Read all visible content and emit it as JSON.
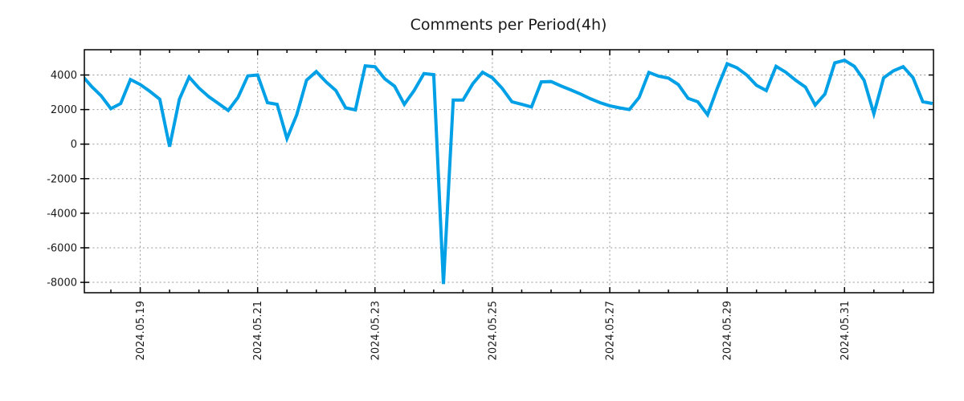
{
  "page": {
    "background": "#ffffff",
    "axis_color": "#000000",
    "grid_color": "#999999",
    "text_color": "#1a1a1a"
  },
  "chart_data": {
    "type": "line",
    "title": "Comments per Period(4h)",
    "period": "4h",
    "legend": "none",
    "grid": "dotted",
    "line_color": "#00a0e6",
    "line_width": 4,
    "x_tick_labels": [
      "2024.05.19",
      "2024.05.21",
      "2024.05.23",
      "2024.05.25",
      "2024.05.27",
      "2024.05.29",
      "2024.05.31"
    ],
    "y_ticks": [
      4000,
      2000,
      0,
      -2000,
      -4000,
      -6000,
      -8000
    ],
    "x_range": [
      "2024.05.18 00:00",
      "2024.06.01 12:40"
    ],
    "y_range": [
      -8600,
      5460
    ],
    "hours": [
      0,
      4,
      8,
      12,
      16,
      20
    ],
    "days": [
      {
        "date": "2024.05.18",
        "values": [
          4000,
          3350,
          2800,
          2050,
          2350,
          3740
        ]
      },
      {
        "date": "2024.05.19",
        "values": [
          3450,
          3050,
          2600,
          -150,
          2600,
          3880
        ]
      },
      {
        "date": "2024.05.20",
        "values": [
          3250,
          2750,
          2350,
          1950,
          2700,
          3950
        ]
      },
      {
        "date": "2024.05.21",
        "values": [
          4000,
          2400,
          2300,
          320,
          1700,
          3700
        ]
      },
      {
        "date": "2024.05.22",
        "values": [
          4200,
          3600,
          3100,
          2100,
          1980,
          4530
        ]
      },
      {
        "date": "2024.05.23",
        "values": [
          4480,
          3780,
          3350,
          2300,
          3100,
          4080
        ]
      },
      {
        "date": "2024.05.24",
        "values": [
          4020,
          -8100,
          2550,
          2550,
          3500,
          4160
        ]
      },
      {
        "date": "2024.05.25",
        "values": [
          3840,
          3230,
          2450,
          2300,
          2150,
          3600
        ]
      },
      {
        "date": "2024.05.26",
        "values": [
          3620,
          3370,
          3140,
          2900,
          2630,
          2400
        ]
      },
      {
        "date": "2024.05.27",
        "values": [
          2220,
          2100,
          2000,
          2700,
          4150,
          3930
        ]
      },
      {
        "date": "2024.05.28",
        "values": [
          3820,
          3450,
          2650,
          2450,
          1700,
          3250
        ]
      },
      {
        "date": "2024.05.29",
        "values": [
          4650,
          4420,
          4000,
          3400,
          3100,
          4500
        ]
      },
      {
        "date": "2024.05.30",
        "values": [
          4160,
          3700,
          3300,
          2260,
          2900,
          4700
        ]
      },
      {
        "date": "2024.05.31",
        "values": [
          4850,
          4500,
          3700,
          1760,
          3840,
          4240
        ]
      },
      {
        "date": "2024.06.01",
        "values": [
          4480,
          3850,
          2450,
          2350
        ]
      }
    ]
  }
}
